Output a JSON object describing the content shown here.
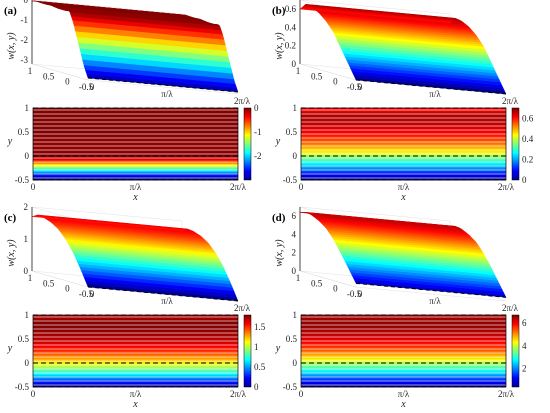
{
  "chart_data": [
    {
      "type": "surface",
      "panel_label": "(a)",
      "surface": {
        "zlabel": "w(x, y)",
        "zticks": [
          "-3",
          "-2",
          "-1",
          "0"
        ],
        "zlim": [
          -3.2,
          0
        ],
        "yticks": [
          "1",
          "0.5",
          "0",
          "-0.5"
        ],
        "xticks": [
          "0",
          "π/λ",
          "2π/λ"
        ],
        "profile": [
          [
            -0.5,
            -3.1
          ],
          [
            -0.4,
            -2.6
          ],
          [
            -0.3,
            -1.9
          ],
          [
            -0.2,
            -1.2
          ],
          [
            -0.1,
            -0.5
          ],
          [
            0.0,
            0.0
          ],
          [
            0.1,
            -0.05
          ],
          [
            0.3,
            -0.05
          ],
          [
            0.5,
            0.0
          ],
          [
            0.7,
            -0.02
          ],
          [
            0.9,
            0.0
          ],
          [
            1.0,
            -0.05
          ]
        ]
      },
      "contour": {
        "xlabel": "x",
        "ylabel": "y",
        "xticks": [
          "0",
          "π/λ",
          "2π/λ"
        ],
        "yticks": [
          "1",
          "0.5",
          "0",
          "-0.5"
        ],
        "colorbar_ticks": [
          "0",
          "-1",
          "-2"
        ],
        "clim": [
          -3,
          0
        ]
      }
    },
    {
      "type": "surface",
      "panel_label": "(b)",
      "surface": {
        "zlabel": "w(x, y)",
        "zticks": [
          "0",
          "0.2",
          "0.4",
          "0.6"
        ],
        "zlim": [
          0,
          0.7
        ],
        "yticks": [
          "1",
          "0.5",
          "0",
          "-0.5"
        ],
        "xticks": [
          "0",
          "π/λ",
          "2π/λ"
        ],
        "profile": [
          [
            -0.5,
            0.0
          ],
          [
            -0.3,
            0.15
          ],
          [
            -0.1,
            0.3
          ],
          [
            0.1,
            0.45
          ],
          [
            0.3,
            0.55
          ],
          [
            0.5,
            0.62
          ],
          [
            0.7,
            0.66
          ],
          [
            0.85,
            0.67
          ],
          [
            1.0,
            0.6
          ]
        ]
      },
      "contour": {
        "xlabel": "x",
        "ylabel": "y",
        "xticks": [
          "0",
          "π/λ",
          "2π/λ"
        ],
        "yticks": [
          "1",
          "0.5",
          "0",
          "-0.5"
        ],
        "colorbar_ticks": [
          "0.6",
          "0.4",
          "0.2",
          "0"
        ],
        "clim": [
          0,
          0.7
        ]
      }
    },
    {
      "type": "surface",
      "panel_label": "(c)",
      "surface": {
        "zlabel": "w(x, y)",
        "zticks": [
          "0",
          "1",
          "2"
        ],
        "zlim": [
          0,
          2
        ],
        "yticks": [
          "1",
          "0.5",
          "0",
          "-0.5"
        ],
        "xticks": [
          "0",
          "π/λ",
          "2π/λ"
        ],
        "profile": [
          [
            -0.5,
            0.0
          ],
          [
            -0.3,
            0.5
          ],
          [
            -0.1,
            0.95
          ],
          [
            0.1,
            1.3
          ],
          [
            0.3,
            1.55
          ],
          [
            0.5,
            1.7
          ],
          [
            0.7,
            1.78
          ],
          [
            0.85,
            1.8
          ],
          [
            1.0,
            1.7
          ]
        ]
      },
      "contour": {
        "xlabel": "x",
        "ylabel": "y",
        "xticks": [
          "0",
          "π/λ",
          "2π/λ"
        ],
        "yticks": [
          "1",
          "0.5",
          "0",
          "-0.5"
        ],
        "colorbar_ticks": [
          "1.5",
          "1",
          "0.5",
          "0"
        ],
        "clim": [
          0,
          1.8
        ]
      }
    },
    {
      "type": "surface",
      "panel_label": "(d)",
      "surface": {
        "zlabel": "w(x, y)",
        "zticks": [
          "0",
          "2",
          "4",
          "6"
        ],
        "zlim": [
          0,
          7
        ],
        "yticks": [
          "1",
          "0.5",
          "0",
          "-0.5"
        ],
        "xticks": [
          "0",
          "π/λ",
          "2π/λ"
        ],
        "profile": [
          [
            -0.5,
            0.4
          ],
          [
            -0.3,
            1.8
          ],
          [
            -0.1,
            3.2
          ],
          [
            0.1,
            4.5
          ],
          [
            0.3,
            5.5
          ],
          [
            0.5,
            6.1
          ],
          [
            0.7,
            6.5
          ],
          [
            0.85,
            6.6
          ],
          [
            1.0,
            6.4
          ]
        ]
      },
      "contour": {
        "xlabel": "x",
        "ylabel": "y",
        "xticks": [
          "0",
          "π/λ",
          "2π/λ"
        ],
        "yticks": [
          "1",
          "0.5",
          "0",
          "-0.5"
        ],
        "colorbar_ticks": [
          "6",
          "4",
          "2"
        ],
        "clim": [
          0.4,
          6.7
        ]
      }
    }
  ]
}
